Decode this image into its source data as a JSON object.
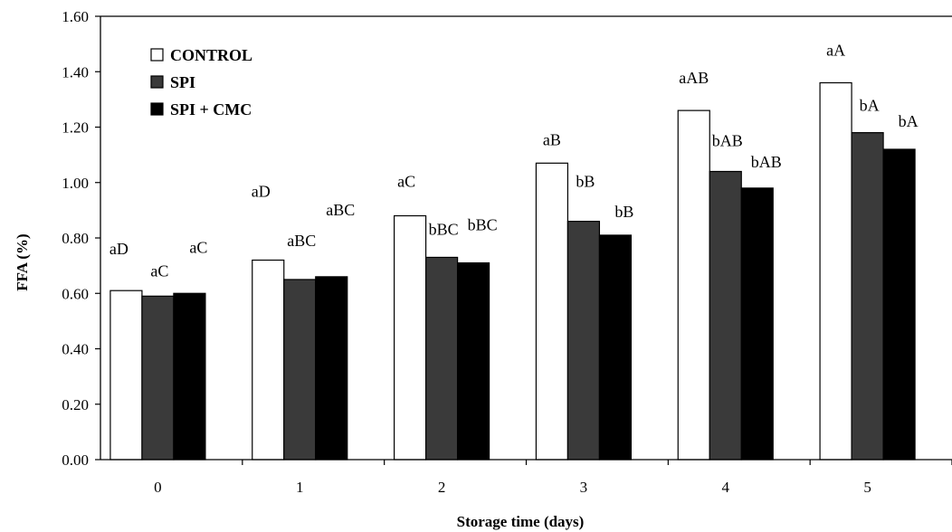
{
  "chart_data": {
    "type": "bar",
    "xlabel": "Storage time (days)",
    "ylabel": "FFA (%)",
    "ylim": [
      0,
      1.6
    ],
    "yticks": [
      "0.00",
      "0.20",
      "0.40",
      "0.60",
      "0.80",
      "1.00",
      "1.20",
      "1.40",
      "1.60"
    ],
    "categories": [
      "0",
      "1",
      "2",
      "3",
      "4",
      "5"
    ],
    "grid": false,
    "legend_position": "top-left",
    "series": [
      {
        "name": "CONTROL",
        "color": "#ffffff",
        "values": [
          0.61,
          0.72,
          0.88,
          1.07,
          1.26,
          1.36
        ],
        "labels": [
          "aD",
          "aD",
          "aC",
          "aB",
          "aAB",
          "aA"
        ]
      },
      {
        "name": "SPI",
        "color": "#3a3a3a",
        "values": [
          0.59,
          0.65,
          0.73,
          0.86,
          1.04,
          1.18
        ],
        "labels": [
          "aC",
          "aBC",
          "bBC",
          "bB",
          "bAB",
          "bA"
        ]
      },
      {
        "name": "SPI + CMC",
        "color": "#000000",
        "values": [
          0.6,
          0.66,
          0.71,
          0.81,
          0.98,
          1.12
        ],
        "labels": [
          "aC",
          "aBC",
          "bBC",
          "bB",
          "bAB",
          "bA"
        ]
      }
    ]
  }
}
